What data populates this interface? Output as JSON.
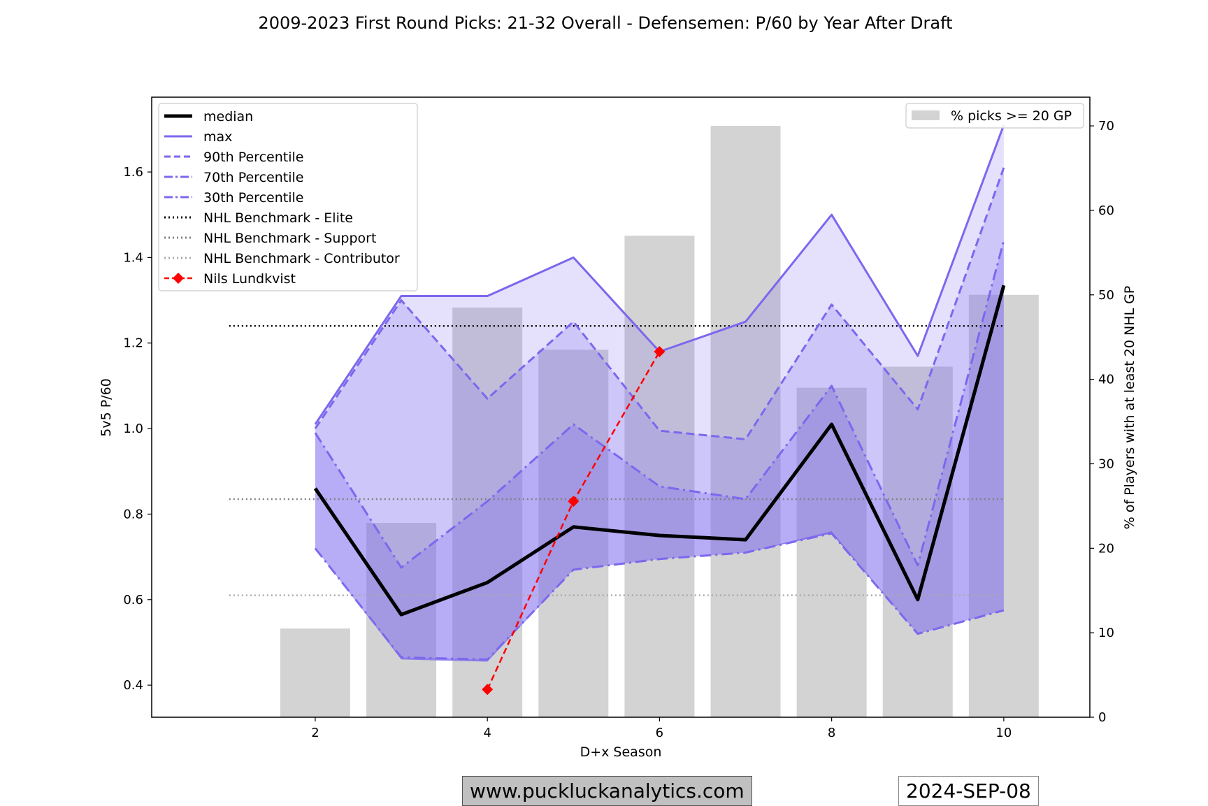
{
  "chart_data": {
    "type": "line",
    "title": "2009-2023 First Round Picks: 21-32 Overall - Defensemen: P/60 by Year After Draft",
    "xlabel": "D+x Season",
    "ylabel": "5v5 P/60",
    "ylabel_right": "% of Players with at least 20 NHL GP",
    "xlim": [
      0.1,
      11.0
    ],
    "ylim": [
      0.325,
      1.775
    ],
    "ylim_right": [
      0,
      73.4
    ],
    "x_ticks": [
      2,
      4,
      6,
      8,
      10
    ],
    "y_ticks": [
      0.4,
      0.6,
      0.8,
      1.0,
      1.2,
      1.4,
      1.6
    ],
    "y_ticks_right": [
      0,
      10,
      20,
      30,
      40,
      50,
      60,
      70
    ],
    "x": [
      2,
      3,
      4,
      5,
      6,
      7,
      8,
      9,
      10
    ],
    "series": [
      {
        "name": "median",
        "style": "solid-bold",
        "color": "#000000",
        "values": [
          0.86,
          0.565,
          0.64,
          0.77,
          0.75,
          0.74,
          1.01,
          0.6,
          1.335
        ]
      },
      {
        "name": "max",
        "style": "solid",
        "color": "#7b68ee",
        "values": [
          1.01,
          1.31,
          1.31,
          1.4,
          1.18,
          1.25,
          1.5,
          1.17,
          1.71
        ]
      },
      {
        "name": "90th Percentile",
        "style": "dashed",
        "color": "#7b68ee",
        "values": [
          1.0,
          1.3,
          1.07,
          1.25,
          0.995,
          0.975,
          1.29,
          1.045,
          1.61
        ]
      },
      {
        "name": "70th Percentile",
        "style": "dashdot",
        "color": "#7b68ee",
        "values": [
          0.99,
          0.675,
          0.83,
          1.01,
          0.865,
          0.835,
          1.1,
          0.68,
          1.44
        ]
      },
      {
        "name": "30th Percentile",
        "style": "dashdot",
        "color": "#7b68ee",
        "values": [
          0.72,
          0.465,
          0.46,
          0.67,
          0.695,
          0.71,
          0.755,
          0.52,
          0.575
        ]
      }
    ],
    "min_band": [
      0.72,
      0.46,
      0.455,
      0.67,
      0.695,
      0.71,
      0.76,
      0.52,
      0.575
    ],
    "benchmarks": [
      {
        "name": "NHL Benchmark - Elite",
        "value": 1.24,
        "color": "#000000",
        "x_range": [
          1,
          10
        ]
      },
      {
        "name": "NHL Benchmark - Support",
        "value": 0.835,
        "color": "#808080",
        "x_range": [
          1,
          10
        ]
      },
      {
        "name": "NHL Benchmark - Contributor",
        "value": 0.61,
        "color": "#aaaaaa",
        "x_range": [
          1,
          10
        ]
      }
    ],
    "player": {
      "name": "Nils Lundkvist",
      "color": "#ff0000",
      "x": [
        4,
        5,
        6
      ],
      "values": [
        0.39,
        0.83,
        1.18
      ]
    },
    "bars": {
      "name": "% picks >= 20 GP",
      "color": "#d3d3d3",
      "x": [
        2,
        3,
        4,
        5,
        6,
        7,
        8,
        9,
        10
      ],
      "values": [
        10.5,
        23,
        48.5,
        43.5,
        57,
        70,
        39,
        41.5,
        50
      ]
    },
    "legend_left": [
      "median",
      "max",
      "90th Percentile",
      "70th Percentile",
      "30th Percentile",
      "NHL Benchmark - Elite",
      "NHL Benchmark - Support",
      "NHL Benchmark - Contributor",
      "Nils Lundkvist"
    ],
    "legend_right": "% picks >= 20 GP"
  },
  "footer": {
    "website": "www.puckluckanalytics.com",
    "date": "2024-SEP-08"
  }
}
